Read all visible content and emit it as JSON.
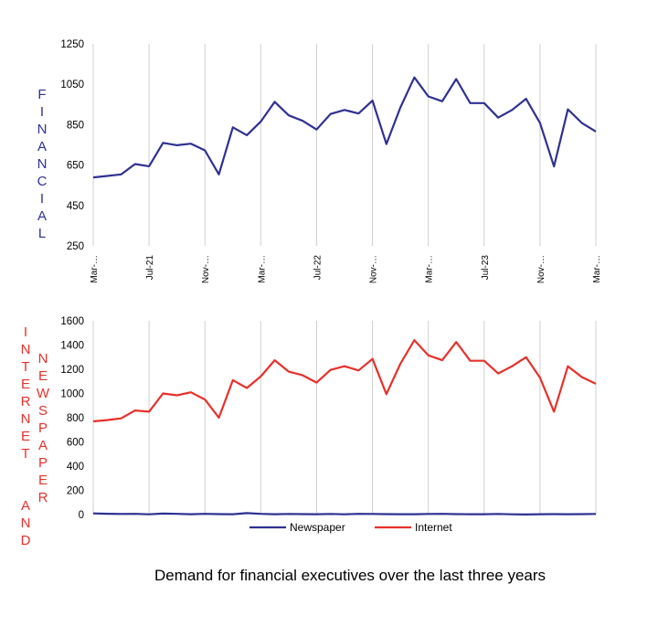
{
  "colors": {
    "newspaper": "#2e3192",
    "internet": "#e8302a",
    "financial": "#2e3192",
    "grid": "#d0d0d0"
  },
  "caption": "Demand for financial executives over the last three years",
  "chart_data": [
    {
      "type": "line",
      "ylabel": "FINANCIAL",
      "ylim": [
        250,
        1250
      ],
      "yticks": [
        "250",
        "450",
        "650",
        "850",
        "1050",
        "1250"
      ],
      "xtick_labels": [
        "Mar-…",
        "Jul-21",
        "Nov-…",
        "Mar-…",
        "Jul-22",
        "Nov-…",
        "Mar-…",
        "Jul-23",
        "Nov-…",
        "Mar-…"
      ],
      "x_range": "Mar 2021 – Mar 2024 (monthly)",
      "grid": "vertical",
      "series": [
        {
          "name": "Financial",
          "values": [
            589,
            596,
            604,
            655,
            644,
            760,
            748,
            756,
            723,
            604,
            837,
            798,
            865,
            963,
            896,
            869,
            826,
            903,
            923,
            905,
            969,
            754,
            935,
            1084,
            990,
            966,
            1076,
            957,
            957,
            885,
            923,
            978,
            858,
            643,
            926,
            858,
            816
          ]
        }
      ]
    },
    {
      "type": "line",
      "ylabel_left": "INTERNET AND",
      "ylabel_right": "NEWSPAPER",
      "ylim": [
        0,
        1600
      ],
      "yticks": [
        "0",
        "200",
        "400",
        "600",
        "800",
        "1000",
        "1200",
        "1400",
        "1600"
      ],
      "grid": "vertical",
      "legend": "bottom",
      "series": [
        {
          "name": "Newspaper",
          "values": [
            10,
            7,
            5,
            6,
            2,
            8,
            6,
            3,
            6,
            4,
            3,
            12,
            6,
            3,
            5,
            4,
            3,
            5,
            2,
            6,
            5,
            4,
            3,
            3,
            5,
            6,
            4,
            3,
            3,
            5,
            2,
            1,
            3,
            4,
            3,
            4,
            5
          ]
        },
        {
          "name": "Internet",
          "values": [
            770,
            780,
            795,
            860,
            850,
            1000,
            985,
            1010,
            950,
            800,
            1110,
            1045,
            1140,
            1275,
            1180,
            1150,
            1090,
            1195,
            1225,
            1190,
            1285,
            995,
            1245,
            1440,
            1315,
            1275,
            1425,
            1270,
            1270,
            1165,
            1225,
            1300,
            1130,
            850,
            1225,
            1135,
            1080
          ]
        }
      ]
    }
  ]
}
